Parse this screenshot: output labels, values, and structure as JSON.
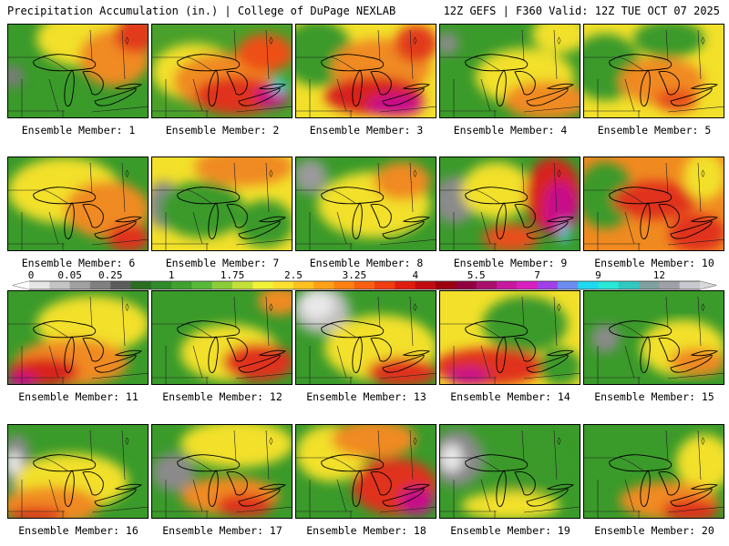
{
  "header": {
    "title": "Precipitation Accumulation (in.) | College of DuPage NEXLAB",
    "run_info": "12Z GEFS | F360 Valid: 12Z TUE OCT 07 2025"
  },
  "map": {
    "region": "Great Lakes",
    "variable": "Precipitation Accumulation",
    "units": "in."
  },
  "panels": [
    {
      "label": "Ensemble Member: 1",
      "base": "#3a9a2a",
      "blobs": [
        [
          "#f2e02a",
          0.55,
          0.15,
          0.35,
          0.3
        ],
        [
          "#f08a20",
          0.75,
          0.35,
          0.25,
          0.3
        ],
        [
          "#e23a1a",
          0.9,
          0.1,
          0.15,
          0.2
        ],
        [
          "#7a7a7a",
          0.03,
          0.55,
          0.08,
          0.12
        ]
      ]
    },
    {
      "label": "Ensemble Member: 2",
      "base": "#4aa02a",
      "blobs": [
        [
          "#f2e02a",
          0.3,
          0.5,
          0.3,
          0.3
        ],
        [
          "#f08a20",
          0.5,
          0.6,
          0.35,
          0.3
        ],
        [
          "#e0301a",
          0.6,
          0.75,
          0.3,
          0.2
        ],
        [
          "#c8108a",
          0.85,
          0.75,
          0.12,
          0.12
        ],
        [
          "#20d0e8",
          0.9,
          0.65,
          0.05,
          0.08
        ],
        [
          "#ee5018",
          0.8,
          0.3,
          0.2,
          0.2
        ]
      ]
    },
    {
      "label": "Ensemble Member: 3",
      "base": "#f2e02a",
      "blobs": [
        [
          "#3a9a2a",
          0.15,
          0.3,
          0.25,
          0.35
        ],
        [
          "#f08a20",
          0.6,
          0.45,
          0.35,
          0.3
        ],
        [
          "#d8201a",
          0.55,
          0.75,
          0.35,
          0.2
        ],
        [
          "#c8108a",
          0.7,
          0.85,
          0.2,
          0.12
        ],
        [
          "#e23a1a",
          0.85,
          0.2,
          0.15,
          0.2
        ]
      ]
    },
    {
      "label": "Ensemble Member: 4",
      "base": "#3a9a2a",
      "blobs": [
        [
          "#f2e02a",
          0.6,
          0.55,
          0.35,
          0.3
        ],
        [
          "#f08a20",
          0.75,
          0.8,
          0.3,
          0.2
        ],
        [
          "#f2e02a",
          0.85,
          0.1,
          0.2,
          0.2
        ],
        [
          "#8a8a8a",
          0.05,
          0.2,
          0.08,
          0.12
        ]
      ]
    },
    {
      "label": "Ensemble Member: 5",
      "base": "#f2e02a",
      "blobs": [
        [
          "#3a9a2a",
          0.15,
          0.45,
          0.25,
          0.35
        ],
        [
          "#f08a20",
          0.55,
          0.6,
          0.3,
          0.25
        ],
        [
          "#e8501a",
          0.65,
          0.8,
          0.15,
          0.12
        ],
        [
          "#3a9a2a",
          0.6,
          0.15,
          0.25,
          0.2
        ]
      ]
    },
    {
      "label": "Ensemble Member: 6",
      "base": "#3a9a2a",
      "blobs": [
        [
          "#f2e02a",
          0.4,
          0.35,
          0.4,
          0.35
        ],
        [
          "#f08a20",
          0.7,
          0.55,
          0.3,
          0.3
        ],
        [
          "#e0301a",
          0.85,
          0.85,
          0.15,
          0.15
        ]
      ]
    },
    {
      "label": "Ensemble Member: 7",
      "base": "#f2e02a",
      "blobs": [
        [
          "#8a8a8a",
          0.08,
          0.5,
          0.12,
          0.25
        ],
        [
          "#3a9a2a",
          0.35,
          0.55,
          0.3,
          0.3
        ],
        [
          "#f08a20",
          0.65,
          0.1,
          0.35,
          0.2
        ],
        [
          "#3a9a2a",
          0.8,
          0.7,
          0.2,
          0.25
        ]
      ]
    },
    {
      "label": "Ensemble Member: 8",
      "base": "#3a9a2a",
      "blobs": [
        [
          "#9a9a9a",
          0.1,
          0.2,
          0.12,
          0.18
        ],
        [
          "#f2e02a",
          0.55,
          0.5,
          0.4,
          0.35
        ],
        [
          "#f08a20",
          0.75,
          0.25,
          0.2,
          0.2
        ]
      ]
    },
    {
      "label": "Ensemble Member: 9",
      "base": "#3a9a2a",
      "blobs": [
        [
          "#8a8a8a",
          0.1,
          0.45,
          0.15,
          0.25
        ],
        [
          "#f2e02a",
          0.4,
          0.35,
          0.25,
          0.3
        ],
        [
          "#d8201a",
          0.8,
          0.4,
          0.2,
          0.4
        ],
        [
          "#c8108a",
          0.85,
          0.55,
          0.12,
          0.3
        ],
        [
          "#20d0e8",
          0.88,
          0.8,
          0.03,
          0.12
        ],
        [
          "#e8501a",
          0.5,
          0.85,
          0.2,
          0.15
        ]
      ]
    },
    {
      "label": "Ensemble Member: 10",
      "base": "#f08a20",
      "blobs": [
        [
          "#3a9a2a",
          0.15,
          0.4,
          0.2,
          0.35
        ],
        [
          "#e0301a",
          0.5,
          0.45,
          0.3,
          0.2
        ],
        [
          "#f2e02a",
          0.85,
          0.2,
          0.15,
          0.25
        ],
        [
          "#e0301a",
          0.8,
          0.8,
          0.2,
          0.2
        ]
      ]
    },
    {
      "label": "Ensemble Member: 11",
      "base": "#3a9a2a",
      "blobs": [
        [
          "#f2e02a",
          0.6,
          0.35,
          0.4,
          0.3
        ],
        [
          "#f08a20",
          0.45,
          0.75,
          0.4,
          0.25
        ],
        [
          "#d8201a",
          0.25,
          0.85,
          0.25,
          0.15
        ],
        [
          "#c8108a",
          0.1,
          0.95,
          0.1,
          0.08
        ]
      ]
    },
    {
      "label": "Ensemble Member: 12",
      "base": "#3a9a2a",
      "blobs": [
        [
          "#f2e02a",
          0.55,
          0.65,
          0.35,
          0.3
        ],
        [
          "#e0301a",
          0.75,
          0.75,
          0.25,
          0.2
        ],
        [
          "#f08a20",
          0.9,
          0.1,
          0.15,
          0.15
        ]
      ]
    },
    {
      "label": "Ensemble Member: 13",
      "base": "#3a9a2a",
      "blobs": [
        [
          "#bdbdbd",
          0.18,
          0.2,
          0.2,
          0.25
        ],
        [
          "#e8e8e8",
          0.15,
          0.15,
          0.12,
          0.15
        ],
        [
          "#f2e02a",
          0.6,
          0.6,
          0.4,
          0.35
        ],
        [
          "#e0301a",
          0.75,
          0.85,
          0.25,
          0.15
        ]
      ]
    },
    {
      "label": "Ensemble Member: 14",
      "base": "#f2e02a",
      "blobs": [
        [
          "#3a9a2a",
          0.6,
          0.35,
          0.3,
          0.3
        ],
        [
          "#e0301a",
          0.35,
          0.8,
          0.4,
          0.2
        ],
        [
          "#c8108a",
          0.2,
          0.9,
          0.15,
          0.1
        ],
        [
          "#3a9a2a",
          0.85,
          0.8,
          0.15,
          0.2
        ]
      ]
    },
    {
      "label": "Ensemble Member: 15",
      "base": "#3a9a2a",
      "blobs": [
        [
          "#8a8a8a",
          0.15,
          0.5,
          0.1,
          0.15
        ],
        [
          "#f2e02a",
          0.7,
          0.6,
          0.3,
          0.3
        ],
        [
          "#f08a20",
          0.8,
          0.75,
          0.2,
          0.15
        ]
      ]
    },
    {
      "label": "Ensemble Member: 16",
      "base": "#3a9a2a",
      "blobs": [
        [
          "#8a8a8a",
          0.06,
          0.4,
          0.1,
          0.3
        ],
        [
          "#f0f0f0",
          0.04,
          0.4,
          0.05,
          0.12
        ],
        [
          "#f2e02a",
          0.45,
          0.6,
          0.4,
          0.3
        ],
        [
          "#f08a20",
          0.3,
          0.85,
          0.35,
          0.2
        ],
        [
          "#e0301a",
          0.2,
          0.95,
          0.2,
          0.08
        ]
      ]
    },
    {
      "label": "Ensemble Member: 17",
      "base": "#3a9a2a",
      "blobs": [
        [
          "#8a8a8a",
          0.15,
          0.5,
          0.15,
          0.2
        ],
        [
          "#f2e02a",
          0.6,
          0.2,
          0.4,
          0.25
        ],
        [
          "#f08a20",
          0.55,
          0.75,
          0.35,
          0.2
        ],
        [
          "#e0301a",
          0.65,
          0.85,
          0.2,
          0.12
        ]
      ]
    },
    {
      "label": "Ensemble Member: 18",
      "base": "#3a9a2a",
      "blobs": [
        [
          "#f2e02a",
          0.25,
          0.3,
          0.25,
          0.3
        ],
        [
          "#f08a20",
          0.55,
          0.15,
          0.3,
          0.2
        ],
        [
          "#e0301a",
          0.7,
          0.65,
          0.3,
          0.3
        ],
        [
          "#c8108a",
          0.85,
          0.8,
          0.12,
          0.15
        ]
      ]
    },
    {
      "label": "Ensemble Member: 19",
      "base": "#3a9a2a",
      "blobs": [
        [
          "#8a8a8a",
          0.12,
          0.35,
          0.18,
          0.3
        ],
        [
          "#e8e8e8",
          0.08,
          0.35,
          0.08,
          0.15
        ],
        [
          "#f2e02a",
          0.5,
          0.85,
          0.35,
          0.15
        ],
        [
          "#3a9a2a",
          0.6,
          0.4,
          0.3,
          0.3
        ]
      ]
    },
    {
      "label": "Ensemble Member: 20",
      "base": "#3a9a2a",
      "blobs": [
        [
          "#f2e02a",
          0.85,
          0.4,
          0.2,
          0.3
        ],
        [
          "#f08a20",
          0.6,
          0.8,
          0.35,
          0.2
        ],
        [
          "#e0301a",
          0.75,
          0.9,
          0.2,
          0.12
        ]
      ]
    }
  ],
  "colorbar": {
    "labels": [
      "0",
      "0.05",
      "0.25",
      "1",
      "1.75",
      "2.5",
      "3.25",
      "4",
      "5.5",
      "7",
      "9",
      "12"
    ],
    "label_bins": [
      0,
      2,
      4,
      7,
      10,
      13,
      16,
      19,
      22,
      25,
      28,
      31
    ],
    "colors": [
      "#e6e6e6",
      "#c4c4c4",
      "#a0a0a0",
      "#808080",
      "#5c5c5c",
      "#2a6e22",
      "#2f8a2a",
      "#3fa22e",
      "#58b83a",
      "#8bcc3a",
      "#c4e038",
      "#f2f238",
      "#ffe030",
      "#ffc020",
      "#ffa018",
      "#ff8010",
      "#f86010",
      "#f03c10",
      "#e01c10",
      "#c00c10",
      "#9c0010",
      "#900040",
      "#a8106c",
      "#c818a0",
      "#d820c0",
      "#a040e8",
      "#6c8cf0",
      "#20d8f0",
      "#28e8d8",
      "#30c8c0",
      "#80a0a0",
      "#a0a0a8",
      "#c8c8d0"
    ]
  }
}
